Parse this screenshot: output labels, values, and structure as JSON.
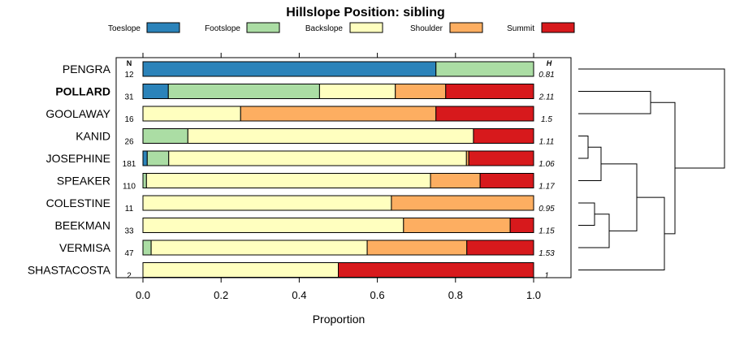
{
  "chart_data": {
    "type": "bar",
    "stacked": true,
    "orientation": "horizontal",
    "title": "Hillslope Position: sibling",
    "xlabel": "Proportion",
    "xlim": [
      0,
      1
    ],
    "x_ticks": [
      "0.0",
      "0.2",
      "0.4",
      "0.6",
      "0.8",
      "1.0"
    ],
    "n_header": "N",
    "h_header": "H",
    "legend_position": "top",
    "bold_category": "POLLARD",
    "dendrogram": true,
    "series": [
      {
        "name": "Toeslope",
        "color": "#2b83ba"
      },
      {
        "name": "Footslope",
        "color": "#abdda4"
      },
      {
        "name": "Backslope",
        "color": "#ffffbf"
      },
      {
        "name": "Shoulder",
        "color": "#fdae61"
      },
      {
        "name": "Summit",
        "color": "#d7191c"
      }
    ],
    "categories": [
      "PENGRA",
      "POLLARD",
      "GOOLAWAY",
      "KANID",
      "JOSEPHINE",
      "SPEAKER",
      "COLESTINE",
      "BEEKMAN",
      "VERMISA",
      "SHASTACOSTA"
    ],
    "n": [
      "12",
      "31",
      "16",
      "26",
      "181",
      "110",
      "11",
      "33",
      "47",
      "2"
    ],
    "h": [
      "0.81",
      "2.11",
      "1.5",
      "1.11",
      "1.06",
      "1.17",
      "0.95",
      "1.15",
      "1.53",
      "1"
    ],
    "values": [
      [
        0.75,
        0.25,
        0,
        0,
        0
      ],
      [
        0.065,
        0.387,
        0.194,
        0.129,
        0.225
      ],
      [
        0,
        0,
        0.25,
        0.5,
        0.25
      ],
      [
        0,
        0.115,
        0.731,
        0,
        0.154
      ],
      [
        0.011,
        0.055,
        0.762,
        0.006,
        0.166
      ],
      [
        0,
        0.009,
        0.727,
        0.127,
        0.137
      ],
      [
        0,
        0,
        0.636,
        0.364,
        0
      ],
      [
        0,
        0,
        0.667,
        0.273,
        0.06
      ],
      [
        0,
        0.021,
        0.553,
        0.255,
        0.171
      ],
      [
        0,
        0,
        0.5,
        0,
        0.5
      ]
    ]
  }
}
